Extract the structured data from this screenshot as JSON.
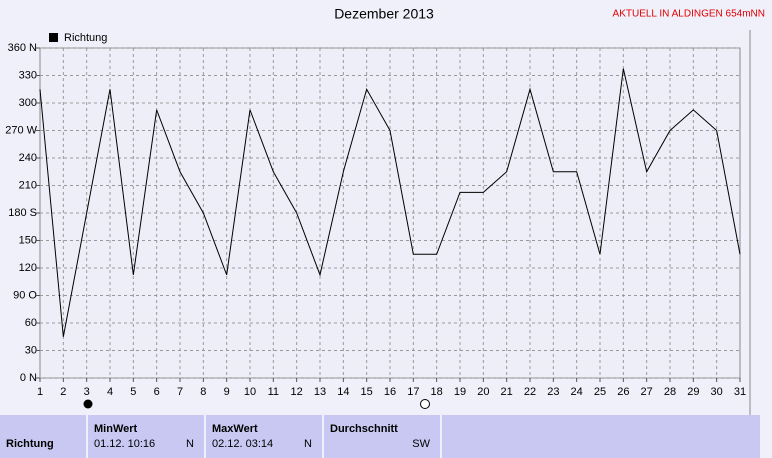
{
  "chart_data": {
    "type": "line",
    "title": "Dezember 2013",
    "subtitle": "AKTUELL IN ALDINGEN 654mNN",
    "categories": [
      "1",
      "2",
      "3",
      "4",
      "5",
      "6",
      "7",
      "8",
      "9",
      "10",
      "11",
      "12",
      "13",
      "14",
      "15",
      "16",
      "17",
      "18",
      "19",
      "20",
      "21",
      "22",
      "23",
      "24",
      "25",
      "26",
      "27",
      "28",
      "29",
      "30",
      "31"
    ],
    "series": [
      {
        "name": "Richtung",
        "color": "#000000",
        "values": [
          315,
          45,
          180,
          315,
          112.5,
          292.5,
          225,
          180,
          112.5,
          292.5,
          225,
          180,
          112.5,
          225,
          315,
          270,
          135,
          135,
          202.5,
          202.5,
          225,
          315,
          225,
          225,
          135,
          337.5,
          225,
          270,
          292.5,
          270,
          135
        ]
      }
    ],
    "ylim": [
      0,
      360
    ],
    "yticks": [
      {
        "value": 0,
        "label": "0 N"
      },
      30,
      60,
      {
        "value": 90,
        "label": "90 O"
      },
      120,
      150,
      {
        "value": 180,
        "label": "180 S"
      },
      210,
      240,
      {
        "value": 270,
        "label": "270 W"
      },
      300,
      330,
      {
        "value": 360,
        "label": "360 N"
      }
    ],
    "grid": true
  },
  "table": {
    "row_label": "Richtung",
    "columns": [
      {
        "header": "MinWert",
        "date": "01.12. 10:16",
        "dir": "N"
      },
      {
        "header": "MaxWert",
        "date": "02.12. 03:14",
        "dir": "N"
      },
      {
        "header": "Durchschnitt",
        "dir": "SW"
      }
    ]
  }
}
